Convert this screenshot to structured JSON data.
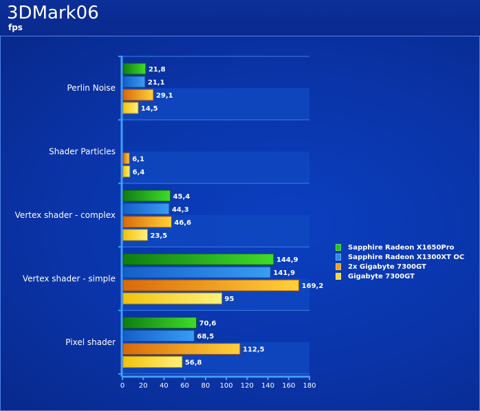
{
  "header": {
    "title": "3DMark06",
    "subtitle": "fps"
  },
  "colors": {
    "background": "#0a2f9c",
    "band": "#0f48c0",
    "axis": "#3fa0ff",
    "series": [
      "#22c51e",
      "#2b86e6",
      "#f0a21a",
      "#f7d93a"
    ]
  },
  "chart_data": {
    "type": "bar",
    "orientation": "horizontal",
    "title": "3DMark06",
    "subtitle": "fps",
    "categories": [
      "Perlin Noise",
      "Shader Particles",
      "Vertex shader - complex",
      "Vertex shader - simple",
      "Pixel shader"
    ],
    "series": [
      {
        "name": "Sapphire Radeon X1650Pro",
        "values": [
          21.8,
          null,
          45.4,
          144.9,
          70.6
        ],
        "labels": [
          "21,8",
          "",
          "45,4",
          "144,9",
          "70,6"
        ]
      },
      {
        "name": "Sapphire Radeon X1300XT OC",
        "values": [
          21.1,
          null,
          44.3,
          141.9,
          68.5
        ],
        "labels": [
          "21,1",
          "",
          "44,3",
          "141,9",
          "68,5"
        ]
      },
      {
        "name": "2x Gigabyte 7300GT",
        "values": [
          29.1,
          6.1,
          46.6,
          169.2,
          112.5
        ],
        "labels": [
          "29,1",
          "6,1",
          "46,6",
          "169,2",
          "112,5"
        ]
      },
      {
        "name": "Gigabyte 7300GT",
        "values": [
          14.5,
          6.4,
          23.5,
          95,
          56.8
        ],
        "labels": [
          "14,5",
          "6,4",
          "23,5",
          "95",
          "56,8"
        ]
      }
    ],
    "xlim": [
      0,
      180
    ],
    "xticks": [
      0,
      20,
      40,
      60,
      80,
      100,
      120,
      140,
      160,
      180
    ],
    "legend": "right",
    "grid": false
  }
}
